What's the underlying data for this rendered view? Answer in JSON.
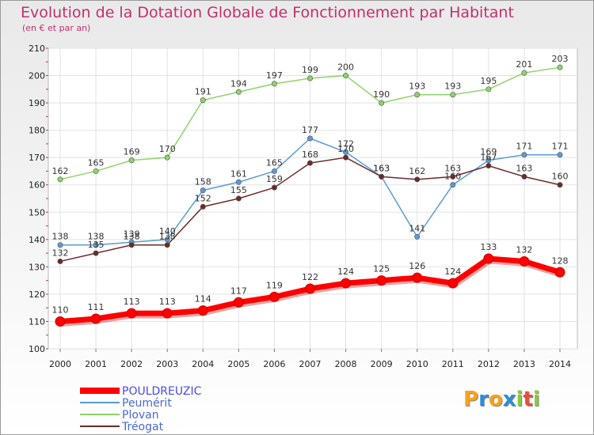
{
  "title": "Evolution de la Dotation Globale de Fonctionnement par Habitant",
  "subtitle": "(en € et par an)",
  "logo": {
    "letters": [
      "P",
      "r",
      "o",
      "x",
      "i",
      "t",
      "i"
    ],
    "colors": [
      "#f7a21b",
      "#2b8fd6",
      "#f7a21b",
      "#2b8fd6",
      "#8cc63f",
      "#e84c3d",
      "#8cc63f"
    ]
  },
  "chart_data": {
    "type": "line",
    "title": "Evolution de la Dotation Globale de Fonctionnement par Habitant",
    "ylabel": "(en € et par an)",
    "x": [
      "2000",
      "2001",
      "2002",
      "2003",
      "2004",
      "2005",
      "2006",
      "2007",
      "2008",
      "2009",
      "2010",
      "2011",
      "2012",
      "2013",
      "2014"
    ],
    "ylim": [
      100,
      210
    ],
    "yticks": [
      "100",
      "110",
      "120",
      "130",
      "140",
      "150",
      "160",
      "170",
      "180",
      "190",
      "200",
      "210"
    ],
    "grid": true,
    "series": [
      {
        "name": "POULDREUZIC",
        "color": "#ff0000",
        "highlight": true,
        "values": [
          110,
          111,
          113,
          113,
          114,
          117,
          119,
          122,
          124,
          125,
          126,
          124,
          133,
          132,
          128
        ]
      },
      {
        "name": "Peumérit",
        "color": "#5b9bd5",
        "highlight": false,
        "values": [
          138,
          138,
          139,
          140,
          158,
          161,
          165,
          177,
          172,
          163,
          141,
          160,
          169,
          171,
          171
        ]
      },
      {
        "name": "Plovan",
        "color": "#8ed36b",
        "highlight": false,
        "values": [
          162,
          165,
          169,
          170,
          191,
          194,
          197,
          199,
          200,
          190,
          193,
          193,
          195,
          201,
          203
        ]
      },
      {
        "name": "Tréogat",
        "color": "#6b2a2a",
        "highlight": false,
        "values": [
          132,
          135,
          138,
          138,
          152,
          155,
          159,
          168,
          170,
          163,
          162,
          163,
          167,
          163,
          160
        ]
      }
    ],
    "legend_position": "bottom-left"
  }
}
